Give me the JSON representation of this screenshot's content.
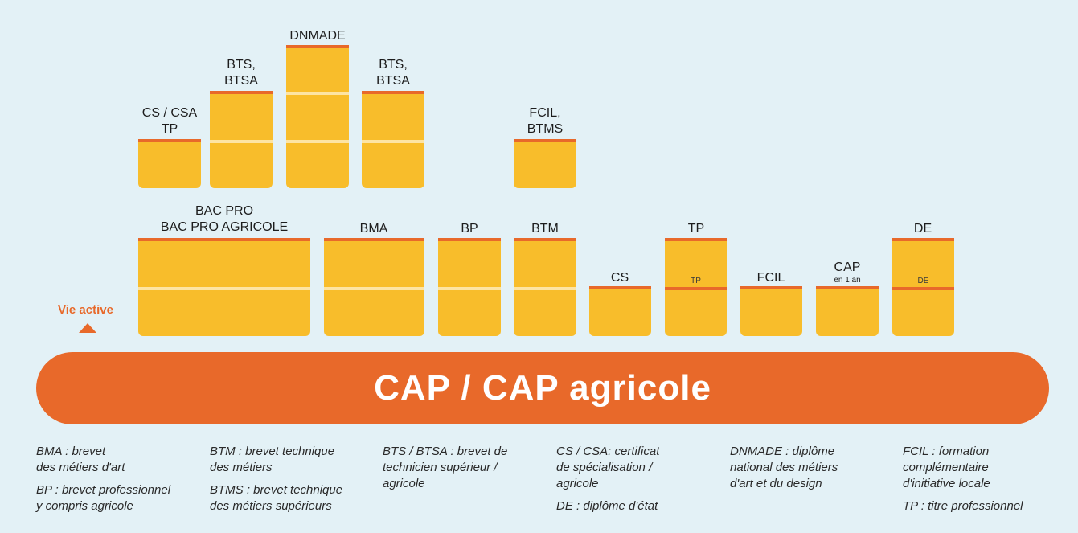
{
  "colors": {
    "background": "#e3f1f6",
    "block": "#f8bd2b",
    "accent": "#e8692a",
    "divider": "#fde4a4"
  },
  "upper_row": {
    "cs_csa_tp": [
      "CS / CSA",
      "TP"
    ],
    "bts_btsa_1": [
      "BTS,",
      "BTSA"
    ],
    "dnmade": "DNMADE",
    "bts_btsa_2": [
      "BTS,",
      "BTSA"
    ],
    "fcil_btms": [
      "FCIL,",
      "BTMS"
    ]
  },
  "lower_row": {
    "bac_pro": [
      "BAC PRO",
      "BAC PRO AGRICOLE"
    ],
    "bma": "BMA",
    "bp": "BP",
    "btm": "BTM",
    "cs": "CS",
    "tp": "TP",
    "tp_inner": "TP",
    "fcil": "FCIL",
    "cap": "CAP",
    "cap_sub": "en 1 an",
    "de": "DE",
    "de_inner": "DE"
  },
  "vie_active": "Vie active",
  "cap_bar": "CAP / CAP agricole",
  "legend": {
    "col1": [
      "BMA : brevet",
      "des métiers d'art",
      "BP : brevet professionnel",
      "y compris agricole"
    ],
    "col2": [
      "BTM : brevet technique",
      "des métiers",
      "BTMS : brevet technique",
      "des métiers supérieurs"
    ],
    "col3": [
      "BTS / BTSA : brevet de",
      "technicien supérieur /",
      "agricole"
    ],
    "col4": [
      "CS / CSA: certificat",
      "de spécialisation /",
      "agricole",
      "DE : diplôme d'état"
    ],
    "col5": [
      "DNMADE : diplôme",
      "national des métiers",
      "d'art et du design"
    ],
    "col6": [
      "FCIL : formation",
      "complémentaire",
      "d'initiative locale",
      "TP : titre professionnel"
    ]
  }
}
